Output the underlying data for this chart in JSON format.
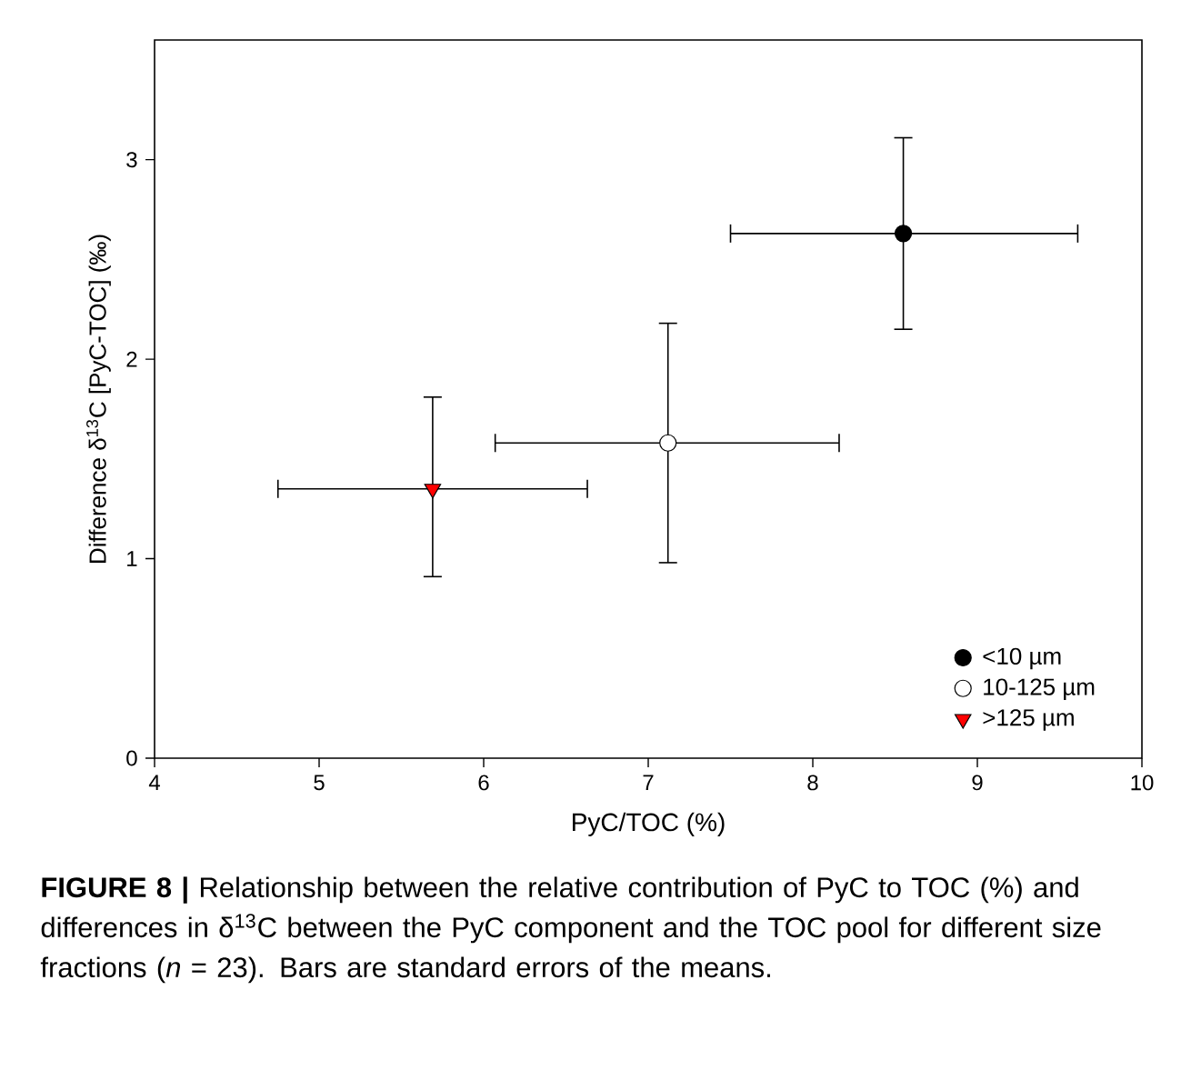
{
  "chart_data": {
    "type": "scatter",
    "xlabel": "PyC/TOC (%)",
    "ylabel": "Difference  δ$^{13}$C [PyC-TOC] (‰)",
    "xlim": [
      4,
      10
    ],
    "ylim": [
      0,
      3.6
    ],
    "xticks": [
      4,
      5,
      6,
      7,
      8,
      9,
      10
    ],
    "yticks": [
      0,
      1,
      2,
      3
    ],
    "grid": false,
    "legend": "bottom right",
    "series": [
      {
        "name": "<10 µm",
        "color": "#000000",
        "marker": "circle",
        "x": [
          8.55
        ],
        "values": [
          2.63
        ],
        "errors": [
          [
            2.15,
            3.11
          ]
        ],
        "xerrors": [
          [
            7.5,
            9.61
          ]
        ]
      },
      {
        "name": "10-125 µm",
        "color": "#ffffff",
        "marker": "circle",
        "x": [
          7.12
        ],
        "values": [
          1.58
        ],
        "errors": [
          [
            0.98,
            2.18
          ]
        ],
        "xerrors": [
          [
            6.07,
            8.16
          ]
        ]
      },
      {
        "name": ">125 µm",
        "color": "#ff0000",
        "marker": "triangle",
        "x": [
          5.69
        ],
        "values": [
          1.35
        ],
        "errors": [
          [
            0.91,
            1.81
          ]
        ],
        "xerrors": [
          [
            4.75,
            6.63
          ]
        ]
      }
    ],
    "annotations": [
      "**FIGURE 8 |** Relationship between the relative contribution of PyC to TOC (%) and differences in δ$^{13}$C between the PyC component and the TOC pool for different size fractions (*n* = 23). Bars are standard errors of the means."
    ]
  }
}
